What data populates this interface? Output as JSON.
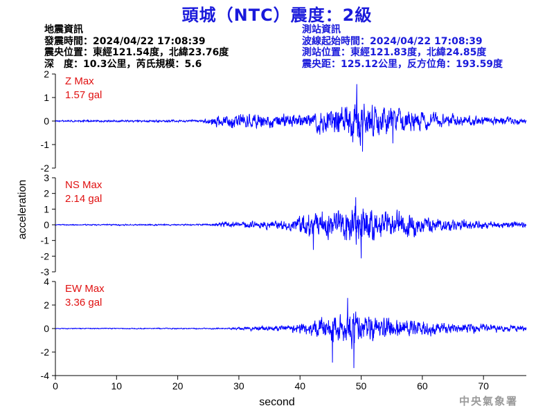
{
  "header": {
    "title": "頭城（NTC）震度：2級"
  },
  "quake_info": {
    "heading": "地震資訊",
    "origin_time": "發震時間：2024/04/22 17:08:39",
    "epicenter": "震央位置：東經121.54度，北緯23.76度",
    "depth_magnitude": "深　度：10.3公里，芮氏規模：5.6"
  },
  "station_info": {
    "heading": "測站資訊",
    "wave_start": "波線起始時間：2024/04/22 17:08:39",
    "station_location": "測站位置：東經121.83度，北緯24.85度",
    "distance_azimuth": "震央距：125.12公里，反方位角：193.59度"
  },
  "footer": {
    "agency": "中央氣象署"
  },
  "colors": {
    "trace": "#0000ff",
    "title": "#1a1adb",
    "max_label": "#e01010"
  },
  "chart_data": {
    "type": "line",
    "xlabel": "second",
    "ylabel": "acceleration",
    "xlim": [
      0,
      77
    ],
    "xticks": [
      0,
      10,
      20,
      30,
      40,
      50,
      60,
      70
    ],
    "grid": false,
    "panels": [
      {
        "component": "Z",
        "label": "Z Max",
        "max_text": "1.57 gal",
        "max_value": 1.57,
        "ylim": [
          -2,
          2
        ],
        "yticks": [
          -2,
          -1,
          0,
          1,
          2
        ],
        "envelope": [
          {
            "t": 0,
            "amp": 0.05
          },
          {
            "t": 24,
            "amp": 0.07
          },
          {
            "t": 26,
            "amp": 0.35
          },
          {
            "t": 30,
            "amp": 0.45
          },
          {
            "t": 35,
            "amp": 0.4
          },
          {
            "t": 40,
            "amp": 0.4
          },
          {
            "t": 43,
            "amp": 0.6
          },
          {
            "t": 47,
            "amp": 0.85
          },
          {
            "t": 49,
            "amp": 1.3
          },
          {
            "t": 52,
            "amp": 0.9
          },
          {
            "t": 57,
            "amp": 0.6
          },
          {
            "t": 63,
            "amp": 0.4
          },
          {
            "t": 70,
            "amp": 0.25
          },
          {
            "t": 77,
            "amp": 0.18
          }
        ],
        "peaks": [
          {
            "t": 49.3,
            "v": 1.57
          },
          {
            "t": 50.2,
            "v": -1.3
          },
          {
            "t": 55.2,
            "v": -0.95
          }
        ]
      },
      {
        "component": "NS",
        "label": "NS Max",
        "max_text": "2.14 gal",
        "max_value": 2.14,
        "ylim": [
          -3,
          3
        ],
        "yticks": [
          -3,
          -2,
          -1,
          0,
          1,
          2,
          3
        ],
        "envelope": [
          {
            "t": 0,
            "amp": 0.05
          },
          {
            "t": 25,
            "amp": 0.07
          },
          {
            "t": 28,
            "amp": 0.25
          },
          {
            "t": 35,
            "amp": 0.35
          },
          {
            "t": 39,
            "amp": 0.5
          },
          {
            "t": 41,
            "amp": 1.1
          },
          {
            "t": 45,
            "amp": 1.2
          },
          {
            "t": 49,
            "amp": 1.6
          },
          {
            "t": 53,
            "amp": 1.2
          },
          {
            "t": 58,
            "amp": 1.0
          },
          {
            "t": 63,
            "amp": 0.6
          },
          {
            "t": 70,
            "amp": 0.35
          },
          {
            "t": 77,
            "amp": 0.25
          }
        ],
        "peaks": [
          {
            "t": 49.1,
            "v": 1.75
          },
          {
            "t": 50.0,
            "v": -2.14
          },
          {
            "t": 42.2,
            "v": -1.6
          }
        ]
      },
      {
        "component": "EW",
        "label": "EW Max",
        "max_text": "3.36 gal",
        "max_value": 3.36,
        "ylim": [
          -4,
          4
        ],
        "yticks": [
          -4,
          -2,
          0,
          2,
          4
        ],
        "envelope": [
          {
            "t": 0,
            "amp": 0.05
          },
          {
            "t": 28,
            "amp": 0.07
          },
          {
            "t": 32,
            "amp": 0.2
          },
          {
            "t": 38,
            "amp": 0.35
          },
          {
            "t": 41,
            "amp": 0.9
          },
          {
            "t": 45,
            "amp": 1.5
          },
          {
            "t": 48,
            "amp": 2.0
          },
          {
            "t": 51,
            "amp": 1.6
          },
          {
            "t": 56,
            "amp": 1.2
          },
          {
            "t": 60,
            "amp": 0.9
          },
          {
            "t": 65,
            "amp": 0.6
          },
          {
            "t": 72,
            "amp": 0.4
          },
          {
            "t": 77,
            "amp": 0.3
          }
        ],
        "peaks": [
          {
            "t": 47.8,
            "v": 2.6
          },
          {
            "t": 48.8,
            "v": -3.36
          },
          {
            "t": 45.3,
            "v": -2.9
          }
        ]
      }
    ]
  }
}
